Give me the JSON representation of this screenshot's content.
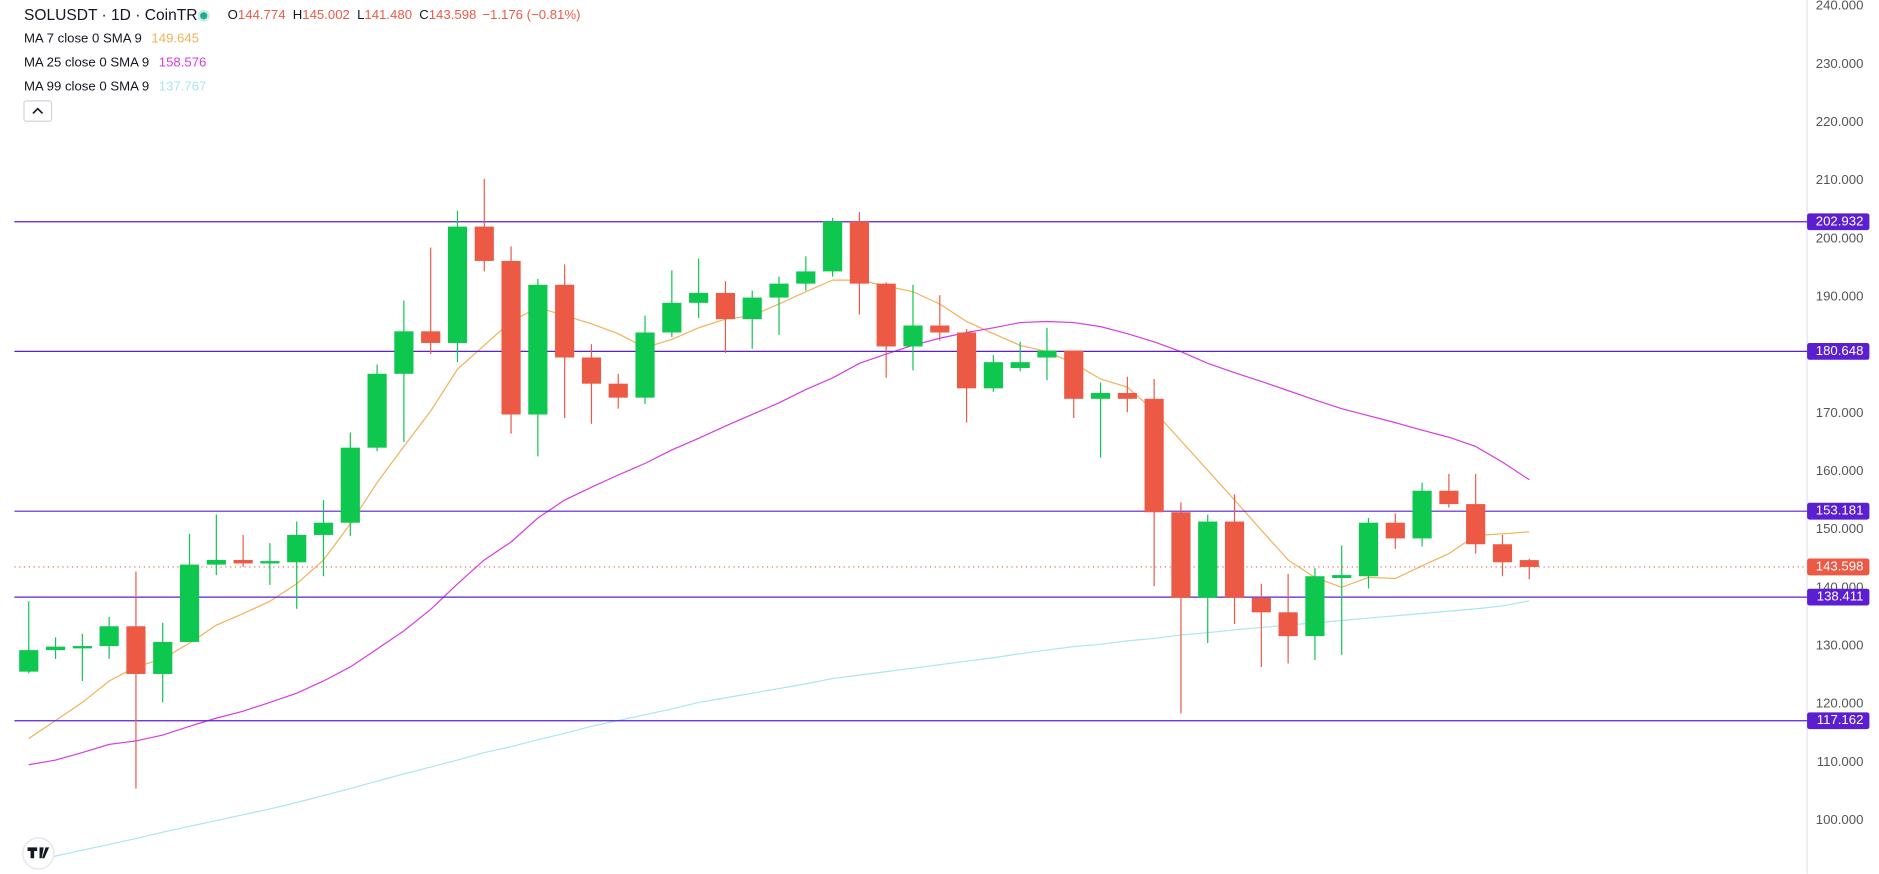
{
  "chart_data": {
    "type": "candlestick",
    "title": "SOLUSDT · 1D · CoinTR",
    "ohlc_legend": [
      {
        "label": "O",
        "value": "144.774"
      },
      {
        "label": "H",
        "value": "145.002"
      },
      {
        "label": "L",
        "value": "141.480"
      },
      {
        "label": "C",
        "value": "143.598"
      }
    ],
    "change": "−1.176 (−0.81%)",
    "up_color": "#0dc74f",
    "down_color": "#ec5a46",
    "open": [
      125.6,
      129.3,
      129.6,
      130.0,
      133.4,
      125.2,
      130.7,
      144.0,
      144.8,
      144.2,
      144.4,
      149.1,
      151.2,
      164.1,
      176.8,
      184.1,
      182.1,
      202.1,
      196.2,
      169.8,
      192.1,
      179.6,
      175.1,
      172.7,
      183.9,
      189.0,
      190.7,
      186.2,
      189.9,
      192.3,
      194.4,
      203.0,
      192.3,
      181.5,
      185.1,
      183.9,
      174.3,
      177.8,
      179.6,
      180.8,
      172.5,
      173.5,
      172.5,
      153.0,
      138.3,
      151.4,
      138.3,
      135.8,
      131.7,
      141.7,
      142.0,
      151.2,
      148.5,
      156.7,
      154.4,
      147.5,
      144.774
    ],
    "high": [
      137.7,
      131.5,
      132.1,
      135.0,
      142.8,
      134.0,
      149.3,
      152.6,
      149.1,
      147.7,
      151.4,
      155.1,
      166.7,
      178.4,
      189.4,
      198.5,
      204.8,
      210.3,
      198.7,
      193.1,
      195.6,
      181.9,
      176.8,
      186.8,
      194.6,
      196.6,
      192.7,
      191.1,
      193.5,
      197.0,
      203.6,
      204.6,
      192.5,
      192.1,
      190.3,
      184.5,
      180.0,
      182.3,
      184.7,
      180.8,
      175.3,
      176.3,
      175.9,
      154.7,
      152.6,
      156.1,
      140.7,
      142.4,
      143.4,
      147.3,
      152.0,
      152.8,
      158.1,
      159.6,
      159.6,
      149.1,
      145.002
    ],
    "low": [
      125.3,
      127.8,
      124.0,
      127.8,
      105.5,
      120.3,
      130.7,
      142.2,
      143.6,
      140.5,
      136.4,
      142.0,
      148.9,
      163.5,
      165.1,
      180.2,
      178.8,
      194.4,
      166.5,
      162.6,
      169.2,
      168.2,
      170.8,
      171.6,
      183.1,
      186.4,
      180.4,
      181.1,
      183.5,
      191.1,
      193.5,
      187.0,
      176.1,
      177.4,
      182.5,
      168.4,
      173.7,
      177.2,
      175.7,
      169.2,
      162.4,
      170.2,
      140.3,
      118.4,
      130.5,
      133.8,
      126.4,
      127.0,
      127.6,
      128.5,
      139.9,
      146.7,
      147.1,
      153.8,
      145.9,
      142.0,
      141.48
    ],
    "close": [
      129.3,
      129.9,
      130.0,
      133.4,
      125.2,
      130.7,
      144.0,
      144.8,
      144.2,
      144.6,
      149.1,
      151.2,
      164.1,
      176.8,
      184.1,
      182.1,
      202.1,
      196.2,
      169.8,
      192.1,
      179.6,
      175.1,
      172.7,
      183.9,
      189.0,
      190.7,
      186.2,
      189.9,
      192.3,
      194.4,
      203.0,
      192.3,
      181.5,
      185.1,
      183.9,
      174.3,
      178.8,
      178.8,
      180.8,
      172.5,
      173.5,
      172.5,
      153.0,
      138.3,
      151.4,
      138.3,
      135.8,
      131.7,
      142.0,
      142.2,
      151.2,
      148.5,
      156.7,
      154.4,
      147.5,
      144.4,
      143.598
    ],
    "ma": [
      {
        "name": "MA 7 close 0 SMA 9",
        "value_label": "149.645",
        "color": "#f0b25a",
        "values": [
          114.1,
          117.2,
          120.3,
          124.0,
          126.4,
          127.8,
          130.5,
          133.6,
          135.6,
          137.7,
          140.7,
          144.8,
          151.0,
          158.1,
          164.3,
          170.4,
          177.6,
          181.7,
          185.8,
          188.2,
          186.8,
          185.4,
          183.7,
          181.3,
          182.7,
          184.7,
          186.2,
          186.8,
          188.8,
          190.9,
          192.9,
          192.9,
          191.9,
          190.9,
          188.8,
          185.8,
          183.7,
          181.7,
          180.6,
          178.6,
          175.9,
          174.5,
          170.4,
          165.3,
          160.2,
          155.1,
          149.9,
          144.8,
          141.8,
          140.1,
          141.8,
          141.6,
          143.8,
          145.9,
          149.0,
          149.3,
          149.645
        ]
      },
      {
        "name": "MA 25 close 0 SMA 9",
        "value_label": "158.576",
        "color": "#d63ce0",
        "values": [
          109.6,
          110.4,
          111.7,
          113.1,
          113.7,
          114.7,
          116.2,
          117.6,
          118.8,
          120.3,
          121.9,
          124.0,
          126.4,
          129.5,
          132.6,
          136.3,
          140.7,
          144.8,
          147.9,
          152.0,
          155.1,
          157.3,
          159.4,
          161.4,
          163.7,
          165.7,
          167.8,
          169.8,
          171.8,
          174.1,
          176.1,
          178.6,
          180.2,
          181.7,
          182.9,
          183.9,
          184.7,
          185.6,
          185.8,
          185.6,
          184.9,
          183.7,
          182.3,
          180.6,
          178.6,
          177.0,
          175.5,
          173.9,
          172.3,
          170.8,
          169.6,
          168.4,
          167.1,
          165.9,
          164.3,
          161.6,
          158.576
        ]
      },
      {
        "name": "MA 99 close 0 SMA 9",
        "value_label": "137.767",
        "color": "#a8e6f0",
        "values": [
          92.8,
          93.9,
          94.9,
          95.9,
          96.9,
          98.0,
          99.0,
          100.0,
          101.0,
          102.0,
          103.1,
          104.3,
          105.5,
          106.8,
          108.0,
          109.2,
          110.4,
          111.7,
          112.7,
          113.9,
          115.0,
          116.2,
          117.2,
          118.2,
          119.2,
          120.3,
          121.1,
          121.9,
          122.7,
          123.5,
          124.4,
          125.0,
          125.6,
          126.2,
          126.8,
          127.4,
          128.0,
          128.7,
          129.3,
          129.9,
          130.3,
          130.9,
          131.3,
          131.9,
          132.3,
          132.8,
          133.2,
          133.6,
          134.0,
          134.4,
          134.8,
          135.2,
          135.6,
          136.0,
          136.4,
          136.9,
          137.767
        ]
      }
    ],
    "levels": [
      202.932,
      180.648,
      153.181,
      138.411,
      117.162
    ],
    "level_color": "#5b1fd0",
    "last_price": 143.598,
    "ylim": [
      90.85,
      241.02
    ],
    "yticks": [
      {
        "value": 100,
        "label": "100.000"
      },
      {
        "value": 110,
        "label": "110.000"
      },
      {
        "value": 120,
        "label": "120.000"
      },
      {
        "value": 130,
        "label": "130.000"
      },
      {
        "value": 140,
        "label": "140.000"
      },
      {
        "value": 150,
        "label": "150.000"
      },
      {
        "value": 160,
        "label": "160.000"
      },
      {
        "value": 170,
        "label": "170.000"
      },
      {
        "value": 180,
        "label": "180.000"
      },
      {
        "value": 190,
        "label": "190.000"
      },
      {
        "value": 200,
        "label": "200.000"
      },
      {
        "value": 210,
        "label": "210.000"
      },
      {
        "value": 220,
        "label": "220.000"
      },
      {
        "value": 230,
        "label": "230.000"
      },
      {
        "value": 240,
        "label": "240.000"
      }
    ]
  }
}
